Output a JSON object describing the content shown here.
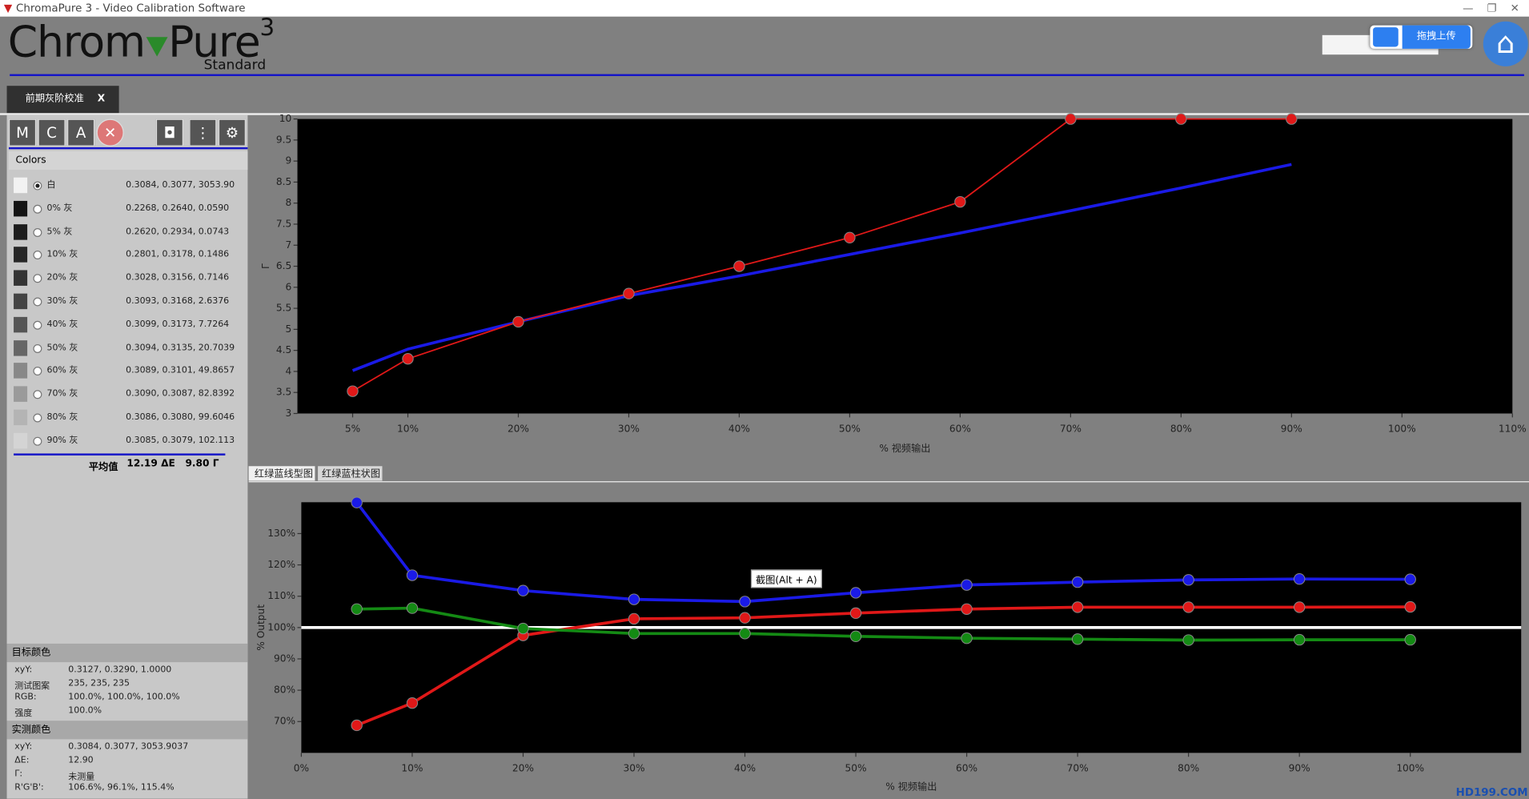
{
  "window": {
    "title": "ChromaPure 3 - Video Calibration Software"
  },
  "logo": {
    "left": "Chrom",
    "right": "Pure",
    "superscript": "3",
    "edition": "Standard"
  },
  "upload_button": "拖拽上传",
  "tab": {
    "label": "前期灰阶校准",
    "close": "X"
  },
  "toolbar": [
    "M",
    "C",
    "A"
  ],
  "colors_panel": {
    "title": "Colors",
    "selected": 0,
    "rows": [
      {
        "name": "白",
        "values": "0.3084, 0.3077, 3053.90"
      },
      {
        "name": "0% 灰",
        "values": "0.2268, 0.2640, 0.0590"
      },
      {
        "name": "5% 灰",
        "values": "0.2620, 0.2934, 0.0743"
      },
      {
        "name": "10% 灰",
        "values": "0.2801, 0.3178, 0.1486"
      },
      {
        "name": "20% 灰",
        "values": "0.3028, 0.3156, 0.7146"
      },
      {
        "name": "30% 灰",
        "values": "0.3093, 0.3168, 2.6376"
      },
      {
        "name": "40% 灰",
        "values": "0.3099, 0.3173, 7.7264"
      },
      {
        "name": "50% 灰",
        "values": "0.3094, 0.3135, 20.7039"
      },
      {
        "name": "60% 灰",
        "values": "0.3089, 0.3101, 49.8657"
      },
      {
        "name": "70% 灰",
        "values": "0.3090, 0.3087, 82.8392"
      },
      {
        "name": "80% 灰",
        "values": "0.3086, 0.3080, 99.6046"
      },
      {
        "name": "90% 灰",
        "values": "0.3085, 0.3079, 102.113"
      }
    ],
    "average": {
      "label": "平均值",
      "delta_e": "12.19 ΔE",
      "gamma": "9.80 Γ"
    }
  },
  "target_color": {
    "title": "目标颜色",
    "rows": [
      [
        "xyY:",
        "0.3127, 0.3290, 1.0000"
      ],
      [
        "测试图案",
        "235, 235, 235"
      ],
      [
        "RGB:",
        "100.0%, 100.0%, 100.0%"
      ],
      [
        "强度",
        "100.0%"
      ]
    ]
  },
  "measured_color": {
    "title": "实测颜色",
    "rows": [
      [
        "xyY:",
        "0.3084, 0.3077, 3053.9037"
      ],
      [
        "ΔE:",
        "12.90"
      ],
      [
        "Γ:",
        "未测量"
      ],
      [
        "R'G'B':",
        "106.6%, 96.1%, 115.4%"
      ]
    ]
  },
  "gamma_chart": {
    "type": "line",
    "y_label": "Γ",
    "x_label": "% 视频输出",
    "x": [
      5,
      10,
      20,
      30,
      40,
      50,
      60,
      70,
      80,
      90
    ],
    "series": [
      {
        "color": "#1a1ae6",
        "markers": false,
        "width": 3,
        "values": [
          4.02,
          4.53,
          5.18,
          5.8,
          6.27,
          6.78,
          7.29,
          7.82,
          8.36,
          8.92
        ]
      },
      {
        "color": "#e01818",
        "markers": true,
        "width": 1.5,
        "values": [
          3.53,
          4.3,
          5.18,
          5.85,
          6.5,
          7.18,
          8.03,
          10,
          10,
          10
        ]
      }
    ],
    "xlim": [
      0,
      110
    ],
    "ylim": [
      3,
      10
    ],
    "xticks": [
      {
        "value": 5,
        "label": "5%"
      },
      {
        "value": 10,
        "label": "10%"
      },
      {
        "value": 20,
        "label": "20%"
      },
      {
        "value": 30,
        "label": "30%"
      },
      {
        "value": 40,
        "label": "40%"
      },
      {
        "value": 50,
        "label": "50%"
      },
      {
        "value": 60,
        "label": "60%"
      },
      {
        "value": 70,
        "label": "70%"
      },
      {
        "value": 80,
        "label": "80%"
      },
      {
        "value": 90,
        "label": "90%"
      },
      {
        "value": 100,
        "label": "100%"
      },
      {
        "value": 110,
        "label": "110%"
      }
    ],
    "yticks": [
      3,
      3.5,
      4,
      4.5,
      5,
      5.5,
      6,
      6.5,
      7,
      7.5,
      8,
      8.5,
      9,
      9.5,
      10
    ]
  },
  "rgb_tabs": [
    "红绿蓝线型图",
    "红绿蓝柱状图"
  ],
  "rgb_chart": {
    "type": "line",
    "y_label": "% Output",
    "x_label": "% 视频输出",
    "reference_line": 100,
    "x": [
      5,
      10,
      20,
      30,
      40,
      50,
      60,
      70,
      80,
      90,
      100
    ],
    "series": [
      {
        "color": "#1a1ae6",
        "markers": true,
        "width": 3,
        "values": [
          139.9,
          116.7,
          111.8,
          109,
          108.3,
          111.1,
          113.6,
          114.5,
          115.2,
          115.5,
          115.4
        ]
      },
      {
        "color": "#e01818",
        "markers": true,
        "width": 3,
        "values": [
          68.8,
          75.9,
          97.5,
          102.8,
          103.1,
          104.6,
          105.9,
          106.5,
          106.5,
          106.5,
          106.6
        ]
      },
      {
        "color": "#148a14",
        "markers": true,
        "width": 3,
        "values": [
          105.9,
          106.2,
          99.7,
          98.1,
          98.1,
          97.2,
          96.6,
          96.3,
          96,
          96.1,
          96.1
        ]
      }
    ],
    "xlim": [
      0,
      110
    ],
    "ylim": [
      60,
      140
    ],
    "xticks": [
      {
        "value": 0,
        "label": "0%"
      },
      {
        "value": 10,
        "label": "10%"
      },
      {
        "value": 20,
        "label": "20%"
      },
      {
        "value": 30,
        "label": "30%"
      },
      {
        "value": 40,
        "label": "40%"
      },
      {
        "value": 50,
        "label": "50%"
      },
      {
        "value": 60,
        "label": "60%"
      },
      {
        "value": 70,
        "label": "70%"
      },
      {
        "value": 80,
        "label": "80%"
      },
      {
        "value": 90,
        "label": "90%"
      },
      {
        "value": 100,
        "label": "100%"
      }
    ],
    "yticks": [
      {
        "value": 70,
        "label": "70%"
      },
      {
        "value": 80,
        "label": "80%"
      },
      {
        "value": 90,
        "label": "90%"
      },
      {
        "value": 100,
        "label": "100%"
      },
      {
        "value": 110,
        "label": "110%"
      },
      {
        "value": 120,
        "label": "120%"
      },
      {
        "value": 130,
        "label": "130%"
      }
    ]
  },
  "tooltip": "截图(Alt + A)",
  "watermark": "HD199.COM"
}
